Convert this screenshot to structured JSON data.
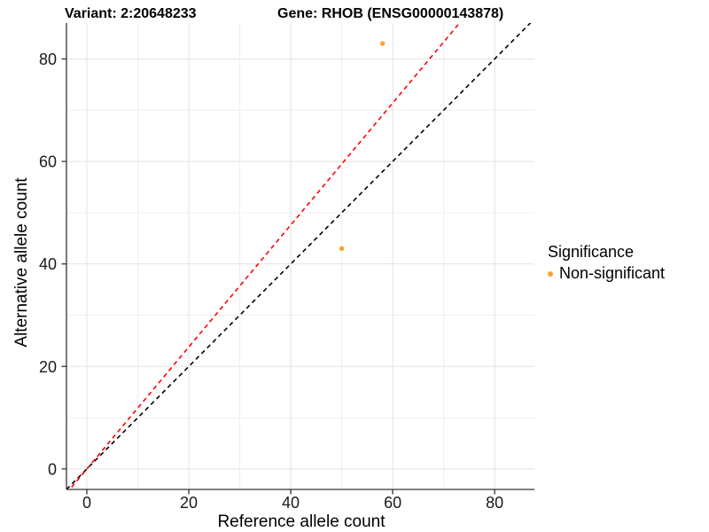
{
  "chart_data": {
    "type": "scatter",
    "titles": [
      "Variant: 2:20648233",
      "Gene: RHOB (ENSG00000143878)"
    ],
    "xlabel": "Reference allele count",
    "ylabel": "Alternative allele count",
    "xlim": [
      -4,
      87.8
    ],
    "ylim": [
      -4,
      87
    ],
    "xticks": [
      0,
      20,
      40,
      60,
      80
    ],
    "yticks": [
      0,
      20,
      40,
      60,
      80
    ],
    "minor_xticks": [
      10,
      30,
      50,
      70
    ],
    "minor_yticks": [
      10,
      30,
      50,
      70
    ],
    "grid": "white panel with light gray major and minor gridlines, axis lines left and bottom only",
    "series": [
      {
        "name": "Non-significant",
        "color": "#F8A42F",
        "marker": "circle",
        "points": [
          [
            50,
            43
          ],
          [
            58,
            83
          ]
        ]
      }
    ],
    "reference_lines": [
      {
        "name": "identity-line",
        "slope": 1,
        "intercept": 0,
        "color": "#000000",
        "style": "dashed"
      },
      {
        "name": "allelic-ratio-line",
        "slope": 1.19,
        "intercept": 0,
        "color": "#FF0000",
        "style": "dashed"
      }
    ],
    "legend": {
      "title": "Significance",
      "position": "right",
      "items": [
        {
          "label": "Non-significant",
          "color": "#F8A42F"
        }
      ]
    },
    "style": {
      "grid_major": "#E3E3E3",
      "grid_minor": "#EFEFEF",
      "axis_line": "#333333",
      "tick_label_color": "#1A1A1A",
      "title_color": "#000000"
    }
  }
}
